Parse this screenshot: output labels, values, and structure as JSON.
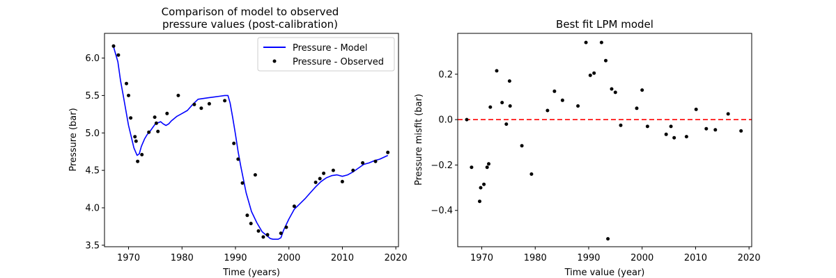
{
  "colors": {
    "model_line": "#0000ff",
    "observed_points": "#000000",
    "zero_line": "#ff0000"
  },
  "chart_data": [
    {
      "type": "line",
      "title": "Comparison of model to observed\npressure values (post-calibration)",
      "xlabel": "Time (years)",
      "ylabel": "Pressure (bar)",
      "xlim": [
        1965.5,
        2020.5
      ],
      "ylim": [
        3.48,
        6.33
      ],
      "x_ticks": [
        1970,
        1980,
        1990,
        2000,
        2010,
        2020
      ],
      "y_ticks": [
        3.5,
        4.0,
        4.5,
        5.0,
        5.5,
        6.0
      ],
      "x_tick_labels": [
        "1970",
        "1980",
        "1990",
        "2000",
        "2010",
        "2020"
      ],
      "y_tick_labels": [
        "3.5",
        "4.0",
        "4.5",
        "5.0",
        "5.5",
        "6.0"
      ],
      "legend_position": "top-right",
      "series": [
        {
          "name": "Pressure - Model",
          "kind": "line",
          "color": "#0000ff",
          "x": [
            1967.2,
            1968.0,
            1968.5,
            1969.0,
            1969.5,
            1970.0,
            1970.5,
            1971.0,
            1971.3,
            1971.6,
            1972.0,
            1972.4,
            1973.0,
            1973.5,
            1974.0,
            1975.0,
            1976.0,
            1976.5,
            1977.0,
            1977.5,
            1978.0,
            1979.0,
            1980.0,
            1981.0,
            1982.0,
            1983.0,
            1984.0,
            1985.0,
            1986.0,
            1987.0,
            1988.0,
            1988.6,
            1989.0,
            1989.5,
            1990.0,
            1990.5,
            1991.0,
            1992.0,
            1993.0,
            1994.0,
            1995.0,
            1996.0,
            1996.5,
            1997.0,
            1998.0,
            1998.5,
            1999.0,
            2000.0,
            2001.0,
            2002.0,
            2003.0,
            2004.0,
            2005.0,
            2006.0,
            2007.0,
            2008.0,
            2009.0,
            2010.0,
            2011.0,
            2012.0,
            2013.0,
            2014.0,
            2015.0,
            2016.0,
            2017.0,
            2018.5
          ],
          "values": [
            6.15,
            5.95,
            5.7,
            5.5,
            5.3,
            5.1,
            4.95,
            4.8,
            4.75,
            4.7,
            4.72,
            4.82,
            4.92,
            4.98,
            5.02,
            5.12,
            5.15,
            5.12,
            5.1,
            5.12,
            5.16,
            5.22,
            5.26,
            5.3,
            5.38,
            5.45,
            5.46,
            5.47,
            5.48,
            5.49,
            5.5,
            5.5,
            5.4,
            5.2,
            4.98,
            4.75,
            4.55,
            4.2,
            3.95,
            3.8,
            3.68,
            3.62,
            3.59,
            3.58,
            3.58,
            3.6,
            3.7,
            3.85,
            3.98,
            4.05,
            4.12,
            4.2,
            4.28,
            4.35,
            4.4,
            4.43,
            4.44,
            4.42,
            4.44,
            4.48,
            4.53,
            4.58,
            4.6,
            4.63,
            4.65,
            4.7
          ]
        },
        {
          "name": "Pressure - Observed",
          "kind": "scatter",
          "color": "#000000",
          "x": [
            1967.2,
            1968.1,
            1969.6,
            1970.0,
            1970.4,
            1971.2,
            1971.4,
            1971.7,
            1972.5,
            1973.8,
            1974.9,
            1975.2,
            1975.5,
            1977.2,
            1979.3,
            1982.3,
            1983.6,
            1985.1,
            1988.0,
            1989.7,
            1990.5,
            1991.3,
            1992.2,
            1992.9,
            1993.7,
            1994.3,
            1995.2,
            1996.0,
            1998.5,
            1999.5,
            2001.0,
            2005.0,
            2005.8,
            2006.5,
            2008.3,
            2010.0,
            2012.0,
            2013.8,
            2016.2,
            2018.5
          ],
          "values": [
            6.16,
            6.04,
            5.66,
            5.5,
            5.2,
            4.95,
            4.89,
            4.62,
            4.71,
            5.01,
            5.21,
            5.13,
            5.02,
            5.26,
            5.5,
            5.38,
            5.33,
            5.39,
            5.43,
            4.86,
            4.65,
            4.33,
            3.9,
            3.79,
            4.44,
            3.69,
            3.61,
            3.64,
            3.66,
            3.74,
            4.02,
            4.34,
            4.39,
            4.46,
            4.5,
            4.35,
            4.5,
            4.6,
            4.62,
            4.74
          ]
        }
      ]
    },
    {
      "type": "scatter",
      "title": "Best fit LPM model",
      "xlabel": "Time value (year)",
      "ylabel": "Pressure misfit (bar)",
      "xlim": [
        1965.5,
        2020.5
      ],
      "ylim": [
        -0.56,
        0.38
      ],
      "x_ticks": [
        1970,
        1980,
        1990,
        2000,
        2010,
        2020
      ],
      "y_ticks": [
        -0.4,
        -0.2,
        0.0,
        0.2
      ],
      "x_tick_labels": [
        "1970",
        "1980",
        "1990",
        "2000",
        "2010",
        "2020"
      ],
      "y_tick_labels": [
        "−0.4",
        "−0.2",
        "0.0",
        "0.2"
      ],
      "reference_line": {
        "y": 0.0,
        "style": "dashed",
        "color": "#ff0000"
      },
      "series": [
        {
          "kind": "scatter",
          "color": "#000000",
          "x": [
            1967.2,
            1968.1,
            1969.6,
            1969.8,
            1970.4,
            1971.0,
            1971.3,
            1971.6,
            1972.8,
            1973.8,
            1974.6,
            1975.2,
            1975.3,
            1977.5,
            1979.3,
            1982.3,
            1983.6,
            1985.1,
            1988.0,
            1989.5,
            1990.3,
            1991.0,
            1992.4,
            1993.2,
            1993.6,
            1994.3,
            1995.0,
            1996.0,
            1999.0,
            2000.0,
            2001.0,
            2004.5,
            2005.4,
            2006.0,
            2008.3,
            2010.1,
            2012.0,
            2013.7,
            2016.1,
            2018.5
          ],
          "values": [
            0.0,
            -0.21,
            -0.36,
            -0.3,
            -0.285,
            -0.21,
            -0.195,
            0.055,
            0.215,
            0.075,
            -0.02,
            0.17,
            0.06,
            -0.115,
            -0.24,
            0.04,
            0.125,
            0.085,
            0.06,
            0.34,
            0.195,
            0.205,
            0.34,
            0.26,
            -0.525,
            0.135,
            0.12,
            -0.025,
            0.05,
            0.13,
            -0.03,
            -0.065,
            -0.03,
            -0.08,
            -0.075,
            0.045,
            -0.04,
            -0.045,
            0.025,
            -0.05
          ]
        }
      ]
    }
  ]
}
